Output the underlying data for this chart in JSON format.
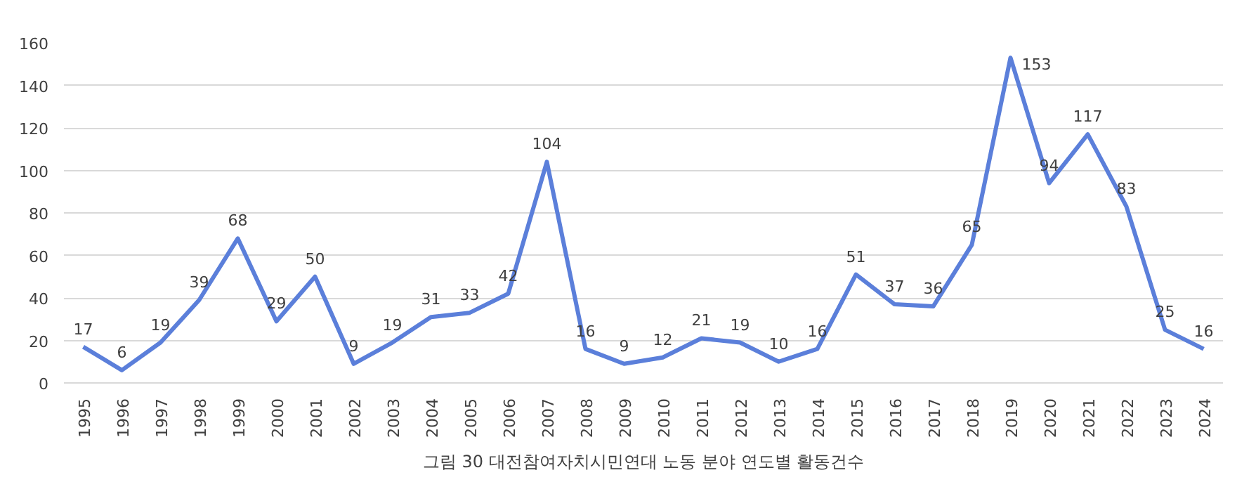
{
  "chart_data": {
    "type": "line",
    "annotations": [
      "그림 30 대전참여자치시민연대 노동 분야 연도별 활동건수"
    ],
    "categories": [
      "1995",
      "1996",
      "1997",
      "1998",
      "1999",
      "2000",
      "2001",
      "2002",
      "2003",
      "2004",
      "2005",
      "2006",
      "2007",
      "2008",
      "2009",
      "2010",
      "2011",
      "2012",
      "2013",
      "2014",
      "2015",
      "2016",
      "2017",
      "2018",
      "2019",
      "2020",
      "2021",
      "2022",
      "2023",
      "2024"
    ],
    "series": [
      {
        "color": "#5b7fda",
        "values": [
          17,
          6,
          19,
          39,
          68,
          29,
          50,
          9,
          19,
          31,
          33,
          42,
          104,
          16,
          9,
          12,
          21,
          19,
          10,
          16,
          51,
          37,
          36,
          65,
          153,
          94,
          117,
          83,
          25,
          16
        ]
      }
    ],
    "ylim": [
      0,
      160
    ],
    "yticks": [
      0,
      20,
      40,
      60,
      80,
      100,
      120,
      140,
      160
    ],
    "grid": "y",
    "data_labels": true,
    "marker": "none",
    "line_style": "solid"
  }
}
